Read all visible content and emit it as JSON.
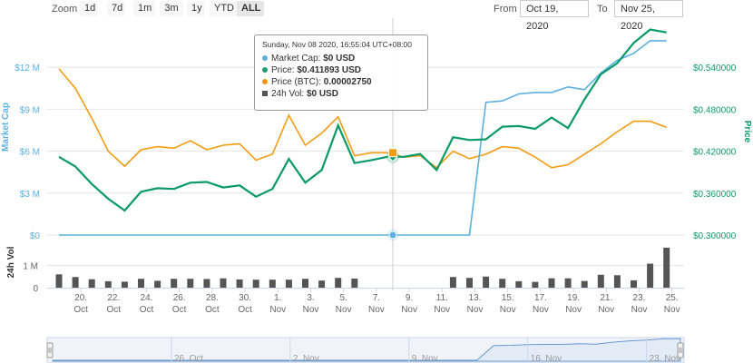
{
  "toolbar": {
    "zoom_label": "Zoom",
    "zoom_buttons": [
      "1d",
      "7d",
      "1m",
      "3m",
      "1y",
      "YTD",
      "ALL"
    ],
    "active_zoom": "ALL",
    "from_label": "From",
    "from_value": "Oct 19, 2020",
    "to_label": "To",
    "to_value": "Nov 25, 2020"
  },
  "tooltip": {
    "header": "Sunday, Nov 08 2020, 16:55:04 UTC+08:00",
    "rows": [
      {
        "label": "Market Cap:",
        "value": "$0 USD",
        "color": "#5bb0e0"
      },
      {
        "label": "Price:",
        "value": "$0.411893 USD",
        "color": "#1e9c6e"
      },
      {
        "label": "Price (BTC):",
        "value": "0.00002750",
        "color": "#f0960e"
      },
      {
        "label": "24h Vol:",
        "value": "$0 USD",
        "color": "#555555"
      }
    ]
  },
  "colors": {
    "market_cap": "#5bb0e0",
    "price": "#0b9a6a",
    "price_btc": "#f39c12",
    "volume": "#555555",
    "navigator_fill": "#e3ebf7"
  },
  "chart_data": {
    "type": "line",
    "x_ticks": [
      "20. Oct",
      "22. Oct",
      "24. Oct",
      "26. Oct",
      "28. Oct",
      "30. Oct",
      "1. Nov",
      "3. Nov",
      "5. Nov",
      "7. Nov",
      "9. Nov",
      "11. Nov",
      "13. Nov",
      "15. Nov",
      "17. Nov",
      "19. Nov",
      "21. Nov",
      "23. Nov",
      "25. Nov"
    ],
    "navigator_ticks": [
      "26. Oct",
      "2. Nov",
      "9. Nov",
      "16. Nov",
      "23. Nov"
    ],
    "y_left_label": "Market Cap",
    "y_left_ticks": [
      "$0",
      "$3 M",
      "$6 M",
      "$9 M",
      "$12 M"
    ],
    "y_left_range": [
      0,
      15000000
    ],
    "y_right_label": "Price",
    "y_right_ticks": [
      "$0.300000",
      "$0.360000",
      "$0.420000",
      "$0.480000",
      "$0.540000"
    ],
    "y_right_range": [
      0.3,
      0.6
    ],
    "vol_label": "24h Vol",
    "vol_ticks": [
      "0",
      "1 M"
    ],
    "vol_range": [
      0,
      2000000
    ],
    "days": [
      "Oct 19",
      "Oct 20",
      "Oct 21",
      "Oct 22",
      "Oct 23",
      "Oct 24",
      "Oct 25",
      "Oct 26",
      "Oct 27",
      "Oct 28",
      "Oct 29",
      "Oct 30",
      "Oct 31",
      "Nov 1",
      "Nov 2",
      "Nov 3",
      "Nov 4",
      "Nov 5",
      "Nov 6",
      "Nov 7",
      "Nov 8",
      "Nov 9",
      "Nov 10",
      "Nov 11",
      "Nov 12",
      "Nov 13",
      "Nov 14",
      "Nov 15",
      "Nov 16",
      "Nov 17",
      "Nov 18",
      "Nov 19",
      "Nov 20",
      "Nov 21",
      "Nov 22",
      "Nov 23",
      "Nov 24",
      "Nov 25"
    ],
    "series": [
      {
        "name": "Market Cap",
        "axis": "left",
        "values": [
          0,
          0,
          0,
          0,
          0,
          0,
          0,
          0,
          0,
          0,
          0,
          0,
          0,
          0,
          0,
          0,
          0,
          0,
          0,
          0,
          0,
          0,
          0,
          0,
          0,
          0,
          9500000,
          9600000,
          10100000,
          10200000,
          10200000,
          10600000,
          10400000,
          11600000,
          12500000,
          13000000,
          13900000,
          13900000
        ]
      },
      {
        "name": "Price",
        "axis": "right",
        "values": [
          0.412,
          0.398,
          0.373,
          0.352,
          0.335,
          0.362,
          0.367,
          0.366,
          0.375,
          0.376,
          0.368,
          0.371,
          0.355,
          0.366,
          0.409,
          0.375,
          0.393,
          0.457,
          0.403,
          0.407,
          0.412,
          0.412,
          0.416,
          0.393,
          0.44,
          0.436,
          0.437,
          0.455,
          0.456,
          0.452,
          0.468,
          0.453,
          0.494,
          0.53,
          0.546,
          0.575,
          0.594,
          0.59
        ]
      },
      {
        "name": "Price (BTC)",
        "axis": "right",
        "values": [
          3.31e-05,
          3.18e-05,
          2.98e-05,
          2.76e-05,
          2.66e-05,
          2.77e-05,
          2.79e-05,
          2.78e-05,
          2.83e-05,
          2.77e-05,
          2.8e-05,
          2.81e-05,
          2.7e-05,
          2.74e-05,
          3e-05,
          2.8e-05,
          2.88e-05,
          2.99e-05,
          2.73e-05,
          2.75e-05,
          2.75e-05,
          2.72e-05,
          2.73e-05,
          2.65e-05,
          2.76e-05,
          2.71e-05,
          2.74e-05,
          2.79e-05,
          2.78e-05,
          2.72e-05,
          2.65e-05,
          2.67e-05,
          2.74e-05,
          2.81e-05,
          2.89e-05,
          2.96e-05,
          2.96e-05,
          2.92e-05
        ]
      },
      {
        "name": "24h Vol",
        "axis": "vol",
        "values": [
          600000,
          480000,
          380000,
          290000,
          270000,
          400000,
          310000,
          400000,
          400000,
          390000,
          420000,
          370000,
          360000,
          360000,
          360000,
          400000,
          320000,
          440000,
          410000,
          0,
          0,
          0,
          0,
          0,
          480000,
          440000,
          500000,
          400000,
          290000,
          260000,
          420000,
          420000,
          300000,
          580000,
          560000,
          330000,
          1080000,
          1800000
        ]
      }
    ]
  }
}
